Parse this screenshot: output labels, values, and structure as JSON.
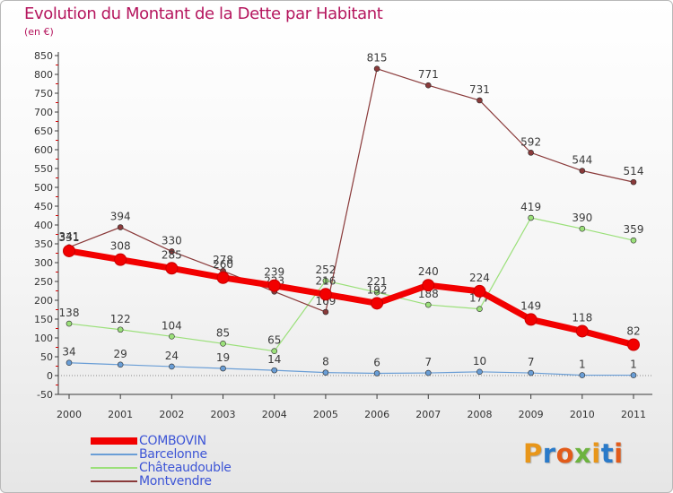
{
  "header": {
    "title": "Evolution du Montant de la Dette par Habitant",
    "unit": "(en €)"
  },
  "logo": {
    "text": "Proxiti",
    "colors": [
      "#e8961a",
      "#2a7ac9",
      "#e25b1a",
      "#6db33f",
      "#e8961a",
      "#2a7ac9",
      "#e25b1a"
    ]
  },
  "chart_data": {
    "type": "line",
    "title": "Evolution du Montant de la Dette par Habitant",
    "subtitle": "(en €)",
    "xlabel": "",
    "ylabel": "",
    "x": [
      "2000",
      "2001",
      "2002",
      "2003",
      "2004",
      "2005",
      "2006",
      "2007",
      "2008",
      "2009",
      "2010",
      "2011"
    ],
    "ylim": [
      -50,
      850
    ],
    "yticks": [
      -50,
      0,
      50,
      100,
      150,
      200,
      250,
      300,
      350,
      400,
      450,
      500,
      550,
      600,
      650,
      700,
      750,
      800,
      850
    ],
    "grid": false,
    "legend_position": "bottom-left",
    "series": [
      {
        "name": "COMBOVIN",
        "color": "#f20000",
        "emphasis": true,
        "values": [
          331,
          308,
          285,
          260,
          239,
          216,
          192,
          240,
          224,
          149,
          118,
          82
        ]
      },
      {
        "name": "Barcelonne",
        "color": "#6a9ed6",
        "emphasis": false,
        "values": [
          34,
          29,
          24,
          19,
          14,
          8,
          6,
          7,
          10,
          7,
          1,
          1
        ]
      },
      {
        "name": "Châteaudouble",
        "color": "#9be07a",
        "emphasis": false,
        "values": [
          138,
          122,
          104,
          85,
          65,
          252,
          221,
          188,
          177,
          419,
          390,
          359
        ]
      },
      {
        "name": "Montvendre",
        "color": "#8a3a3a",
        "emphasis": false,
        "values": [
          341,
          394,
          330,
          278,
          223,
          169,
          815,
          771,
          731,
          592,
          544,
          514
        ]
      }
    ]
  }
}
